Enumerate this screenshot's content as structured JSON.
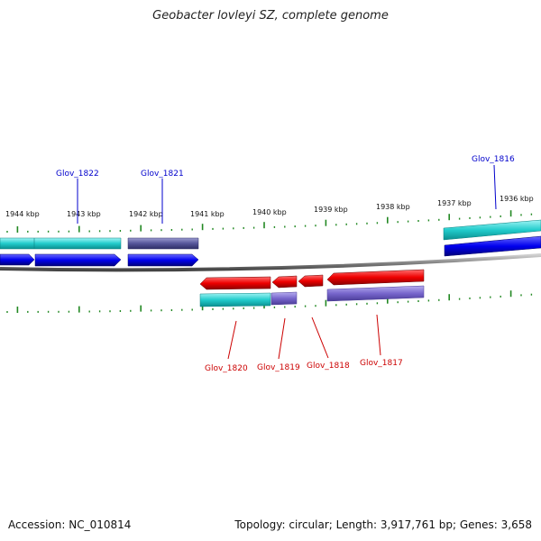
{
  "title": "Geobacter lovleyi SZ, complete genome",
  "footer": {
    "accession": "Accession: NC_010814",
    "summary": "Topology: circular; Length: 3,917,761 bp; Genes: 3,658"
  },
  "colors": {
    "forward_gene": "#0000ee",
    "reverse_gene": "#ee0000",
    "cds_cyan": "#22cccc",
    "cds_slate": "#55559a",
    "cds_lavender": "#7766cc",
    "tick_green": "#228822",
    "backbone_gray": "#888888"
  },
  "ruler_labels": [
    "1944 kbp",
    "1943 kbp",
    "1942 kbp",
    "1941 kbp",
    "1940 kbp",
    "1939 kbp",
    "1938 kbp",
    "1937 kbp",
    "1936 kbp"
  ],
  "genes": {
    "glov_1822": "Glov_1822",
    "glov_1821": "Glov_1821",
    "glov_1816": "Glov_1816",
    "glov_1820": "Glov_1820",
    "glov_1819": "Glov_1819",
    "glov_1818": "Glov_1818",
    "glov_1817": "Glov_1817"
  }
}
